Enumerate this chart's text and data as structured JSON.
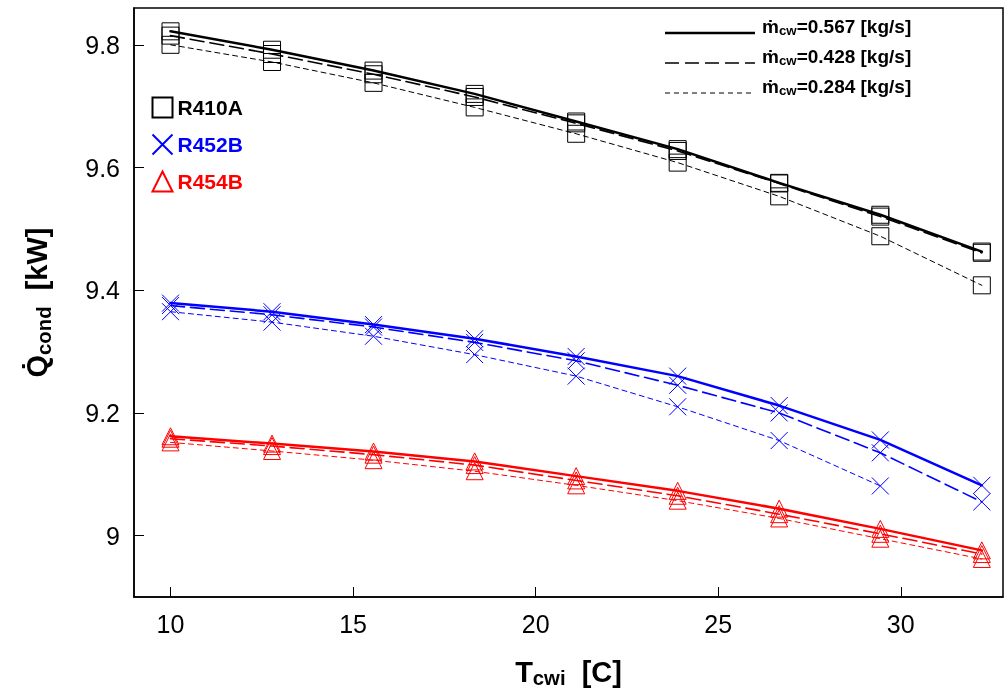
{
  "chart_data": {
    "type": "line",
    "xlabel": "T$_{cwi}$  [C]",
    "ylabel": "Q̇$_{cond}$  [kW]",
    "x": [
      10,
      12.78,
      15.56,
      18.33,
      21.11,
      23.89,
      26.67,
      29.44,
      32.22
    ],
    "xlim": [
      9,
      32.8
    ],
    "xticks": [
      10,
      15,
      20,
      25,
      30
    ],
    "ylim": [
      8.9,
      9.86
    ],
    "yticks": [
      9,
      9.2,
      9.4,
      9.6,
      9.8
    ],
    "grid": false,
    "legend": "top left",
    "annotations": [
      "ṁ$_{cw}$=0.567 [kg/s]",
      "ṁ$_{cw}$=0.428 [kg/s]",
      "ṁ$_{cw}$=0.284 [kg/s]"
    ],
    "series": [
      {
        "name": "R410A",
        "color": "#000000",
        "marker": "square",
        "line_style": "solid",
        "values": [
          9.822,
          9.792,
          9.758,
          9.72,
          9.675,
          9.63,
          9.575,
          9.523,
          9.463
        ]
      },
      {
        "color": "#000000",
        "marker": "square",
        "line_style": "dashed",
        "values": [
          9.815,
          9.785,
          9.752,
          9.715,
          9.672,
          9.627,
          9.574,
          9.52,
          9.461
        ]
      },
      {
        "color": "#000000",
        "marker": "square",
        "line_style": "dotted",
        "values": [
          9.8,
          9.772,
          9.738,
          9.698,
          9.655,
          9.608,
          9.553,
          9.488,
          9.408
        ]
      },
      {
        "name": "R452B",
        "color": "#0000ff",
        "marker": "cross",
        "line_style": "solid",
        "values": [
          9.379,
          9.365,
          9.344,
          9.321,
          9.292,
          9.26,
          9.212,
          9.156,
          9.082
        ]
      },
      {
        "color": "#0000ff",
        "marker": "cross",
        "line_style": "dashed",
        "values": [
          9.375,
          9.36,
          9.34,
          9.315,
          9.285,
          9.245,
          9.2,
          9.135,
          9.055
        ]
      },
      {
        "color": "#0000ff",
        "marker": "cross",
        "line_style": "dotted",
        "values": [
          9.365,
          9.348,
          9.325,
          9.295,
          9.26,
          9.21,
          9.155,
          9.081,
          null
        ]
      },
      {
        "name": "R454B",
        "color": "#ff0000",
        "marker": "triangle",
        "line_style": "solid",
        "values": [
          9.162,
          9.15,
          9.137,
          9.121,
          9.097,
          9.073,
          9.044,
          9.011,
          8.976
        ]
      },
      {
        "color": "#ff0000",
        "marker": "triangle",
        "line_style": "dashed",
        "values": [
          9.158,
          9.146,
          9.132,
          9.115,
          9.09,
          9.065,
          9.035,
          9.003,
          8.97
        ]
      },
      {
        "color": "#ff0000",
        "marker": "triangle",
        "line_style": "dotted",
        "values": [
          9.152,
          9.138,
          9.123,
          9.105,
          9.082,
          9.057,
          9.028,
          8.995,
          8.962
        ]
      }
    ]
  }
}
